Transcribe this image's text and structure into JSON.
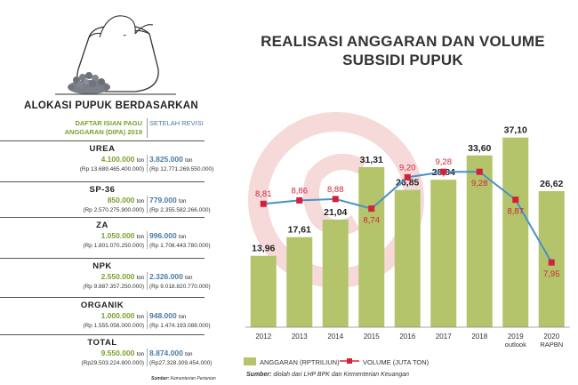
{
  "left_panel": {
    "title": "ALOKASI PUPUK BERDASARKAN",
    "col_left": [
      "DAFTAR ISIAN PAGU",
      "ANGGARAN (DIPA) 2019"
    ],
    "col_right": "SETELAH REVISI",
    "unit": "ton",
    "items": [
      {
        "name": "UREA",
        "left_vol": "4.100.000",
        "left_rp": "(Rp 13.689.465.400.000)",
        "right_vol": "3.825.000",
        "right_rp": "(Rp 12.771.269.550.000)"
      },
      {
        "name": "SP-36",
        "left_vol": "850.000",
        "left_rp": "(Rp 2.570.275.900.000)",
        "right_vol": "779.000",
        "right_rp": "(Rp 2.355.582.266.000)"
      },
      {
        "name": "ZA",
        "left_vol": "1.050.000",
        "left_rp": "(Rp 1.801.070.250.000)",
        "right_vol": "996.000",
        "right_rp": "(Rp 1.708.443.780.000)"
      },
      {
        "name": "NPK",
        "left_vol": "2.550.000",
        "left_rp": "(Rp 9.887.357.250.000)",
        "right_vol": "2.326.000",
        "right_rp": "(Rp 9.018.820.770.000)"
      },
      {
        "name": "ORGANIK",
        "left_vol": "1.000.000",
        "left_rp": "(Rp 1.555.056.000.000)",
        "right_vol": "948.000",
        "right_rp": "(Rp 1.474.193.088.000)"
      },
      {
        "name": "TOTAL",
        "left_vol": "9.550.000",
        "left_rp": "(Rp29.503.224.800.000)",
        "right_vol": "8.874.000",
        "right_rp": "(Rp27.328.309.454.000)"
      }
    ],
    "source_bold": "Sumber:",
    "source_text": "Kementerian Pertanian"
  },
  "chart_data": {
    "type": "bar",
    "title": "REALISASI ANGGARAN DAN VOLUME SUBSIDI PUPUK",
    "title_lines": [
      "REALISASI ANGGARAN DAN VOLUME",
      "SUBSIDI PUPUK"
    ],
    "categories": [
      "2012",
      "2013",
      "2014",
      "2015",
      "2016",
      "2017",
      "2018",
      "2019\noutlook",
      "2020\nRAPBN"
    ],
    "series": [
      {
        "name": "ANGGARAN (RPTRILIUN)",
        "type": "bar",
        "color": "#b3c46a",
        "values": [
          13.96,
          17.61,
          21.04,
          31.31,
          26.85,
          28.84,
          33.6,
          37.1,
          26.62
        ],
        "labels": [
          "13,96",
          "17,61",
          "21,04",
          "31,31",
          "26,85",
          "28,84",
          "33,60",
          "37,10",
          "26,62"
        ]
      },
      {
        "name": "VOLUME (JUTA TON)",
        "type": "line",
        "color": "#d4203a",
        "line_color": "#4a90c8",
        "values": [
          8.81,
          8.86,
          8.88,
          8.74,
          9.2,
          9.28,
          9.28,
          8.87,
          7.95
        ],
        "labels": [
          "8,81",
          "8,86",
          "8,88",
          "8,74",
          "9,20",
          "9,28",
          "9,28",
          "8,87",
          "7,95"
        ]
      }
    ],
    "ylim_bar": [
      0,
      40
    ],
    "ylim_line": [
      7,
      10
    ],
    "legend_placement": "bottom",
    "grid": false,
    "source_bold": "Sumber:",
    "source_text": "diolah dari LHP BPK dan Kementerian Keuangan"
  }
}
